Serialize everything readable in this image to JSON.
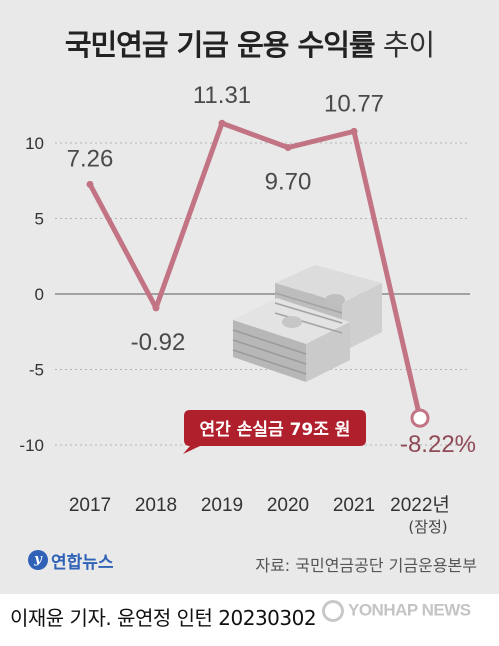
{
  "title": {
    "bold": "국민연금 기금 운용 수익률",
    "light": "추이"
  },
  "callout": "연간 손실금 79조 원",
  "source": "자료: 국민연금공단 기금운용본부",
  "logo": {
    "mark": "y",
    "text": "연합뉴스"
  },
  "byline": "이재윤 기자. 윤연정 인턴  20230302",
  "watermark": "YONHAP NEWS",
  "chart_data": {
    "type": "line",
    "title": "국민연금 기금 운용 수익률 추이",
    "categories": [
      "2017",
      "2018",
      "2019",
      "2020",
      "2021",
      "2022년"
    ],
    "category_sub": {
      "2022년": "(잠정)"
    },
    "values": [
      7.26,
      -0.92,
      11.31,
      9.7,
      10.77,
      -8.22
    ],
    "value_labels": [
      "7.26",
      "-0.92",
      "11.31",
      "9.70",
      "10.77",
      "-8.22%"
    ],
    "y_ticks": [
      10,
      5,
      0,
      -5,
      -10
    ],
    "y_tick_labels": [
      "10",
      "5",
      "0",
      "-5",
      "-10"
    ],
    "ylim": [
      -11.5,
      13.5
    ],
    "grid": "y-dotted",
    "colors": {
      "line": "#c27484",
      "zero_line": "#8a8a8a",
      "callout": "#b0202c"
    }
  }
}
